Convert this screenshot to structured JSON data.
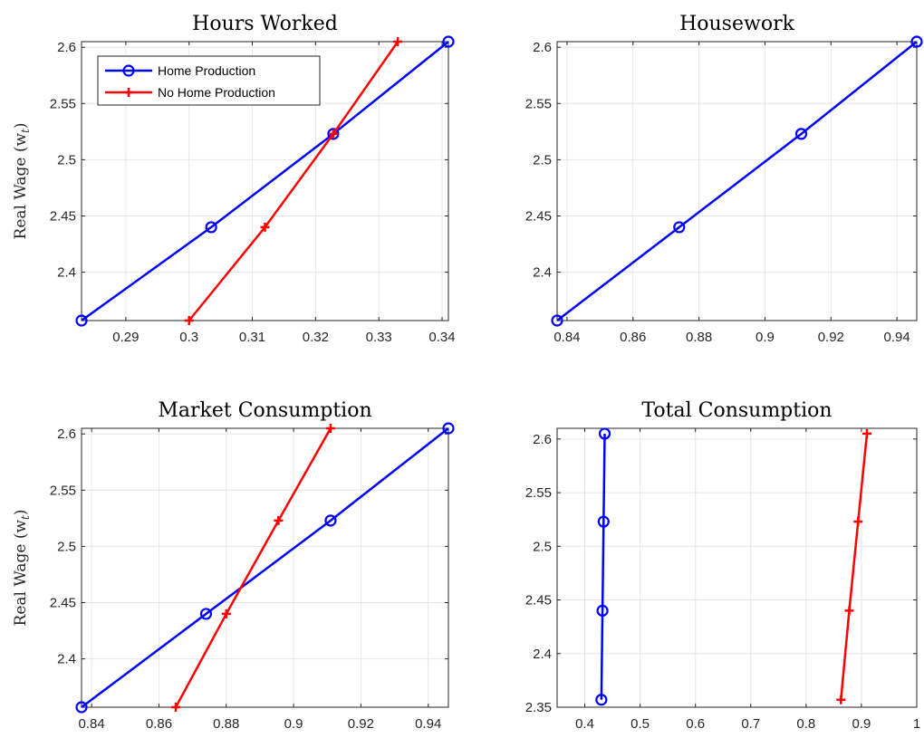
{
  "colors": {
    "home": "#0000ff",
    "no_home": "#ff0000",
    "grid": "#e6e6e6",
    "axis": "#262626"
  },
  "chart_data": [
    {
      "type": "line",
      "title": "Hours Worked",
      "xlabel": "",
      "ylabel": "Real Wage (w",
      "ylabel_sub": "t",
      "ylabel_close": ")",
      "xlim": [
        0.283,
        0.341
      ],
      "ylim": [
        2.357,
        2.605
      ],
      "xticks": [
        0.29,
        0.3,
        0.31,
        0.32,
        0.33,
        0.34
      ],
      "xtick_labels": [
        "0.29",
        "0.3",
        "0.31",
        "0.32",
        "0.33",
        "0.34"
      ],
      "yticks": [
        2.4,
        2.45,
        2.5,
        2.55,
        2.6
      ],
      "ytick_labels": [
        "2.4",
        "2.45",
        "2.5",
        "2.55",
        "2.6"
      ],
      "grid": true,
      "legend": "top-left",
      "series": [
        {
          "name": "Home Production",
          "marker": "circle",
          "color": "#0000ff",
          "x": [
            0.283,
            0.3035,
            0.3228,
            0.341
          ],
          "y": [
            2.357,
            2.44,
            2.523,
            2.605
          ]
        },
        {
          "name": "No Home Production",
          "marker": "plus",
          "color": "#ff0000",
          "x": [
            0.3,
            0.312,
            0.3228,
            0.333
          ],
          "y": [
            2.357,
            2.44,
            2.523,
            2.605
          ]
        }
      ]
    },
    {
      "type": "line",
      "title": "Housework",
      "xlabel": "",
      "ylabel": "",
      "xlim": [
        0.837,
        0.946
      ],
      "ylim": [
        2.357,
        2.605
      ],
      "xticks": [
        0.84,
        0.86,
        0.88,
        0.9,
        0.92,
        0.94
      ],
      "xtick_labels": [
        "0.84",
        "0.86",
        "0.88",
        "0.9",
        "0.92",
        "0.94"
      ],
      "yticks": [
        2.4,
        2.45,
        2.5,
        2.55,
        2.6
      ],
      "ytick_labels": [
        "2.4",
        "2.45",
        "2.5",
        "2.55",
        "2.6"
      ],
      "grid": true,
      "legend": "none",
      "series": [
        {
          "name": "",
          "marker": "circle",
          "color": "#0000ff",
          "x": [
            0.837,
            0.874,
            0.911,
            0.946
          ],
          "y": [
            2.357,
            2.44,
            2.523,
            2.605
          ]
        }
      ]
    },
    {
      "type": "line",
      "title": "Market Consumption",
      "xlabel": "",
      "ylabel": "Real Wage (w",
      "ylabel_sub": "t",
      "ylabel_close": ")",
      "xlim": [
        0.837,
        0.946
      ],
      "ylim": [
        2.357,
        2.605
      ],
      "xticks": [
        0.84,
        0.86,
        0.88,
        0.9,
        0.92,
        0.94
      ],
      "xtick_labels": [
        "0.84",
        "0.86",
        "0.88",
        "0.9",
        "0.92",
        "0.94"
      ],
      "yticks": [
        2.4,
        2.45,
        2.5,
        2.55,
        2.6
      ],
      "ytick_labels": [
        "2.4",
        "2.45",
        "2.5",
        "2.55",
        "2.6"
      ],
      "grid": true,
      "legend": "none",
      "series": [
        {
          "name": "",
          "marker": "circle",
          "color": "#0000ff",
          "x": [
            0.837,
            0.874,
            0.911,
            0.946
          ],
          "y": [
            2.357,
            2.44,
            2.523,
            2.605
          ]
        },
        {
          "name": "",
          "marker": "plus",
          "color": "#ff0000",
          "x": [
            0.865,
            0.88,
            0.8955,
            0.911
          ],
          "y": [
            2.357,
            2.44,
            2.523,
            2.605
          ]
        }
      ]
    },
    {
      "type": "line",
      "title": "Total Consumption",
      "xlabel": "",
      "ylabel": "",
      "xlim": [
        0.35,
        1.0
      ],
      "ylim": [
        2.35,
        2.61
      ],
      "xticks": [
        0.4,
        0.5,
        0.6,
        0.7,
        0.8,
        0.9,
        1.0
      ],
      "xtick_labels": [
        "0.4",
        "0.5",
        "0.6",
        "0.7",
        "0.8",
        "0.9",
        "1"
      ],
      "yticks": [
        2.35,
        2.4,
        2.45,
        2.5,
        2.55,
        2.6
      ],
      "ytick_labels": [
        "2.35",
        "2.4",
        "2.45",
        "2.5",
        "2.55",
        "2.6"
      ],
      "grid": true,
      "legend": "none",
      "series": [
        {
          "name": "",
          "marker": "circle",
          "color": "#0000ff",
          "x": [
            0.43,
            0.432,
            0.434,
            0.436
          ],
          "y": [
            2.357,
            2.44,
            2.523,
            2.605
          ]
        },
        {
          "name": "",
          "marker": "plus",
          "color": "#ff0000",
          "x": [
            0.863,
            0.878,
            0.894,
            0.91
          ],
          "y": [
            2.357,
            2.44,
            2.523,
            2.605
          ]
        }
      ]
    }
  ]
}
